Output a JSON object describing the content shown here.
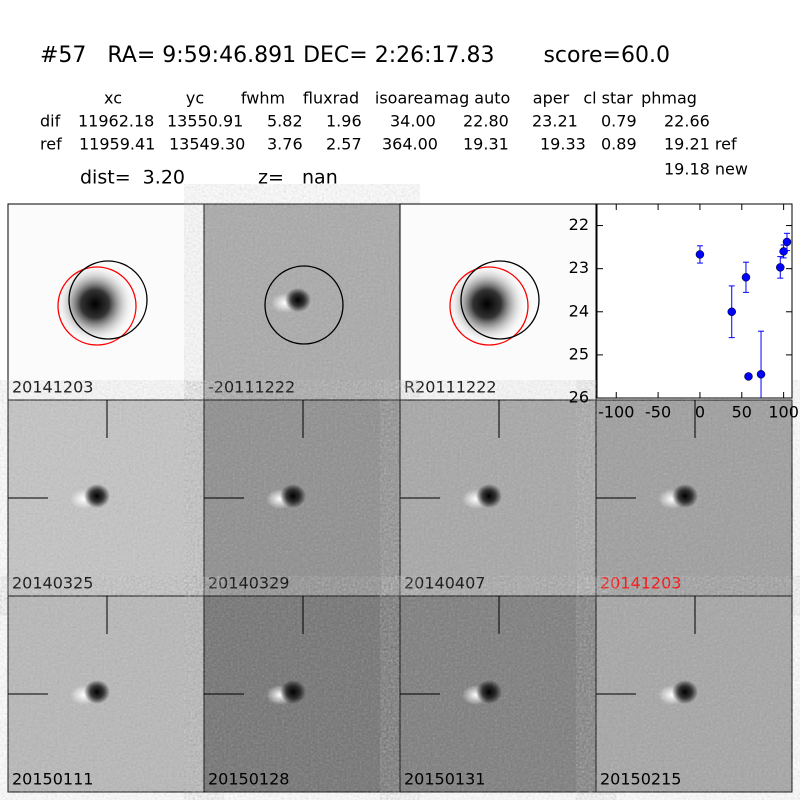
{
  "header": {
    "title": "#57   RA= 9:59:46.891 DEC= 2:26:17.83       score=60.0"
  },
  "table": {
    "columns": [
      "xc",
      "yc",
      "fwhm",
      "fluxrad",
      "isoarea",
      "mag auto",
      "aper",
      "cl star",
      "phmag"
    ],
    "rows": [
      {
        "label": "dif",
        "cells": [
          "11962.18",
          "13550.91",
          "5.82",
          "1.96",
          "34.00",
          "22.80",
          "23.21",
          "0.79",
          "22.66"
        ]
      },
      {
        "label": "ref",
        "cells": [
          "11959.41",
          "13549.30",
          "3.76",
          "2.57",
          "364.00",
          "19.31",
          "19.33",
          "0.89",
          "19.21 ref"
        ]
      }
    ],
    "extra": "19.18 new"
  },
  "summary": {
    "dist": "dist=  3.20",
    "z": "z=   nan"
  },
  "panels": [
    {
      "label": "20141203"
    },
    {
      "label": "-20111222"
    },
    {
      "label": "R20111222"
    },
    {
      "label": "20140325"
    },
    {
      "label": "20140329"
    },
    {
      "label": "20140407"
    },
    {
      "label": "20141203",
      "label_color": "#ff0000"
    },
    {
      "label": "20150111"
    },
    {
      "label": "20150128"
    },
    {
      "label": "20150131"
    },
    {
      "label": "20150215"
    }
  ],
  "chart_data": {
    "type": "scatter",
    "color": "#0000ff",
    "x": [
      0,
      38,
      55,
      58,
      73,
      96,
      100,
      104
    ],
    "values": [
      22.67,
      24.0,
      23.2,
      25.5,
      25.45,
      22.97,
      22.6,
      22.38
    ],
    "errors": [
      0.2,
      0.6,
      0.35,
      0.05,
      1.0,
      0.25,
      0.15,
      0.2
    ],
    "xlim": [
      -123,
      110
    ],
    "ylim": [
      26,
      21.5
    ],
    "xticks": [
      -100,
      -50,
      0,
      50,
      100
    ],
    "yticks": [
      22,
      23,
      24,
      25,
      26
    ]
  }
}
